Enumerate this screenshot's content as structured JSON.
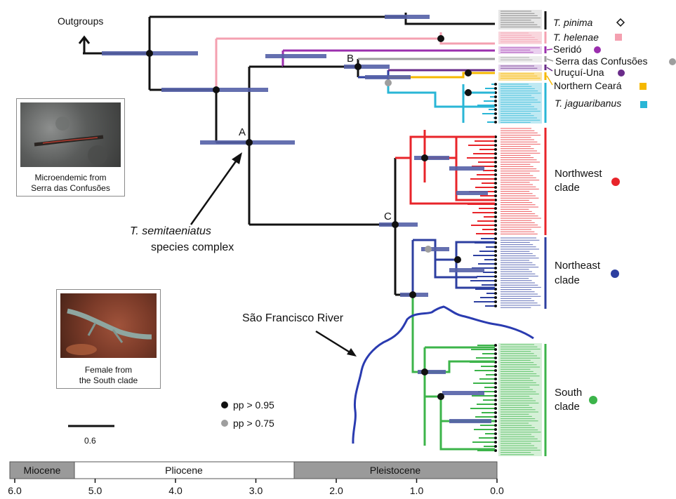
{
  "outgroups_label": "Outgroups",
  "complex_label_italic": "T. semitaeniatus",
  "complex_label_rest": "species complex",
  "node_labels": {
    "a": "A",
    "b": "B",
    "c": "C"
  },
  "river_label": "São Francisco River",
  "photos": {
    "microendemic": {
      "caption_line1": "Microendemic from",
      "caption_line2": "Serra das Confusões"
    },
    "female": {
      "caption_line1": "Female from",
      "caption_line2": "the South clade"
    }
  },
  "legend": {
    "high": "pp > 0.95",
    "mid": "pp > 0.75"
  },
  "scale_bar": {
    "value": "0.6"
  },
  "clades": [
    {
      "id": "pinima",
      "label": "T. pinima",
      "italic": true,
      "color": "#111111",
      "marker": "diamond-open"
    },
    {
      "id": "helenae",
      "label": "T. helenae",
      "italic": true,
      "color": "#f4a0b0",
      "marker": "square"
    },
    {
      "id": "serido",
      "label": "Seridó",
      "italic": false,
      "color": "#9b2fae",
      "marker": "circle"
    },
    {
      "id": "confusoes",
      "label": "Serra das Confusões",
      "italic": false,
      "color": "#9e9e9e",
      "marker": "circle"
    },
    {
      "id": "urucui",
      "label": "Uruçuí-Una",
      "italic": false,
      "color": "#6a2c8a",
      "marker": "circle"
    },
    {
      "id": "ceara",
      "label": "Northern Ceará",
      "italic": false,
      "color": "#f5b800",
      "marker": "square"
    },
    {
      "id": "jaguaribanus",
      "label": "T. jaguaribanus",
      "italic": true,
      "color": "#29b6d6",
      "marker": "square"
    },
    {
      "id": "northwest",
      "label_line1": "Northwest",
      "label_line2": "clade",
      "color": "#e8242a",
      "marker": "circle"
    },
    {
      "id": "northeast",
      "label_line1": "Northeast",
      "label_line2": "clade",
      "color": "#2d3fa0",
      "marker": "circle"
    },
    {
      "id": "south",
      "label_line1": "South",
      "label_line2": "clade",
      "color": "#3cb44a",
      "marker": "circle"
    }
  ],
  "epochs": [
    "Miocene",
    "Pliocene",
    "Pleistocene"
  ],
  "time_axis": {
    "ticks": [
      "6.0",
      "5.0",
      "4.0",
      "3.0",
      "2.0",
      "1.0",
      "0.0"
    ],
    "epoch_boundaries_ma": [
      5.33,
      2.58
    ],
    "range_ma": [
      6.0,
      0.0
    ]
  },
  "colors": {
    "bar_blue": "#5561a8",
    "river": "#2a3bb0",
    "epoch_gray": "#9a9a9a",
    "stem": "#111111"
  }
}
